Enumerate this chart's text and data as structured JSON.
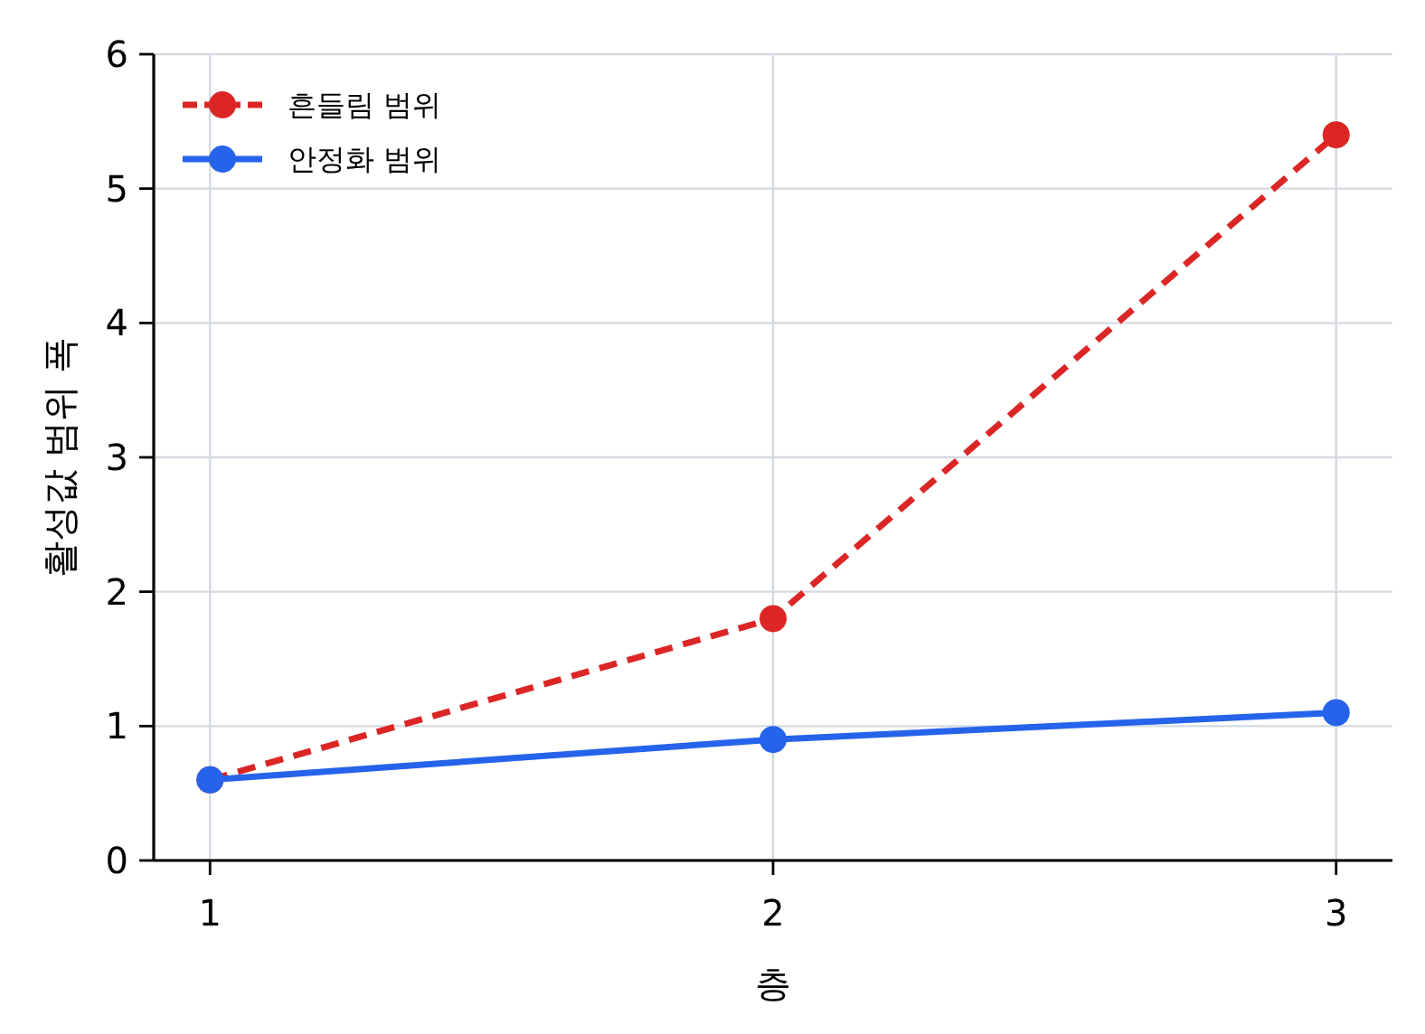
{
  "chart_data": {
    "type": "line",
    "xlabel": "층",
    "ylabel": "활성값 범위 폭",
    "x": [
      1,
      2,
      3
    ],
    "series": [
      {
        "name": "흔들림 범위",
        "color": "#dc2626",
        "values": [
          0.6,
          1.8,
          5.4
        ],
        "line_style": "dashed"
      },
      {
        "name": "안정화 범위",
        "color": "#2563eb",
        "values": [
          0.6,
          0.9,
          1.1
        ],
        "line_style": "solid"
      }
    ],
    "xlim": [
      0.9,
      3.1
    ],
    "xticks": [
      1,
      2,
      3
    ],
    "ylim": [
      0,
      6
    ],
    "yticks": [
      0,
      1,
      2,
      3,
      4,
      5,
      6
    ],
    "grid": true,
    "legend": "top left",
    "marker": "circle"
  }
}
